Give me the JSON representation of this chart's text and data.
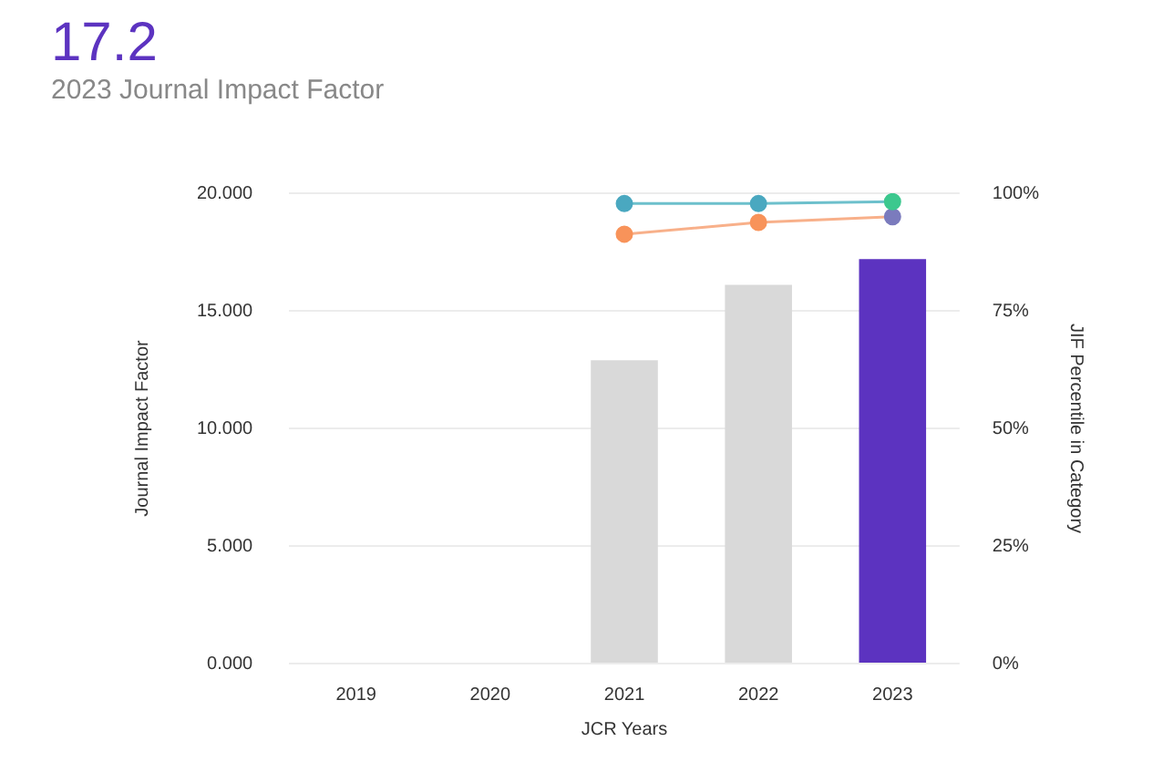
{
  "chart_data": {
    "type": "bar",
    "title": "17.2",
    "subtitle": "2023 Journal Impact Factor",
    "xlabel": "JCR Years",
    "ylabel": "Journal Impact Factor",
    "y2label": "JIF Percentile in Category",
    "categories": [
      "2019",
      "2020",
      "2021",
      "2022",
      "2023"
    ],
    "series": [
      {
        "colors": [
          "#d9d9d9",
          "#d9d9d9",
          "#d9d9d9",
          "#d9d9d9",
          "#5c33c0"
        ],
        "values": [
          null,
          null,
          12.9,
          16.1,
          17.2
        ]
      },
      {
        "type": "line",
        "axis": "y2",
        "color": "#6dc0cc",
        "colors": [
          "#4aa8c0",
          "#4aa8c0",
          "#4aa8c0",
          "#4aa8c0",
          "#3cc88e"
        ],
        "values": [
          null,
          null,
          97.8,
          97.8,
          98.2
        ]
      },
      {
        "type": "line",
        "axis": "y2",
        "color": "#f8b08a",
        "colors": [
          "#f8935a",
          "#f8935a",
          "#f8935a",
          "#f8935a",
          "#7b7bbd"
        ],
        "values": [
          null,
          null,
          91.3,
          93.8,
          95
        ]
      }
    ],
    "ylim": [
      0,
      20
    ],
    "yticks": [
      {
        "value": 0,
        "label": "0.000"
      },
      {
        "value": 5,
        "label": "5.000"
      },
      {
        "value": 10,
        "label": "10.000"
      },
      {
        "value": 15,
        "label": "15.000"
      },
      {
        "value": 20,
        "label": "20.000"
      }
    ],
    "y2lim": [
      0,
      100
    ],
    "y2ticks": [
      {
        "value": 0,
        "label": "0%"
      },
      {
        "value": 25,
        "label": "25%"
      },
      {
        "value": 50,
        "label": "50%"
      },
      {
        "value": 75,
        "label": "75%"
      },
      {
        "value": 100,
        "label": "100%"
      }
    ],
    "grid": "y",
    "legend": false,
    "marker": "circle"
  }
}
